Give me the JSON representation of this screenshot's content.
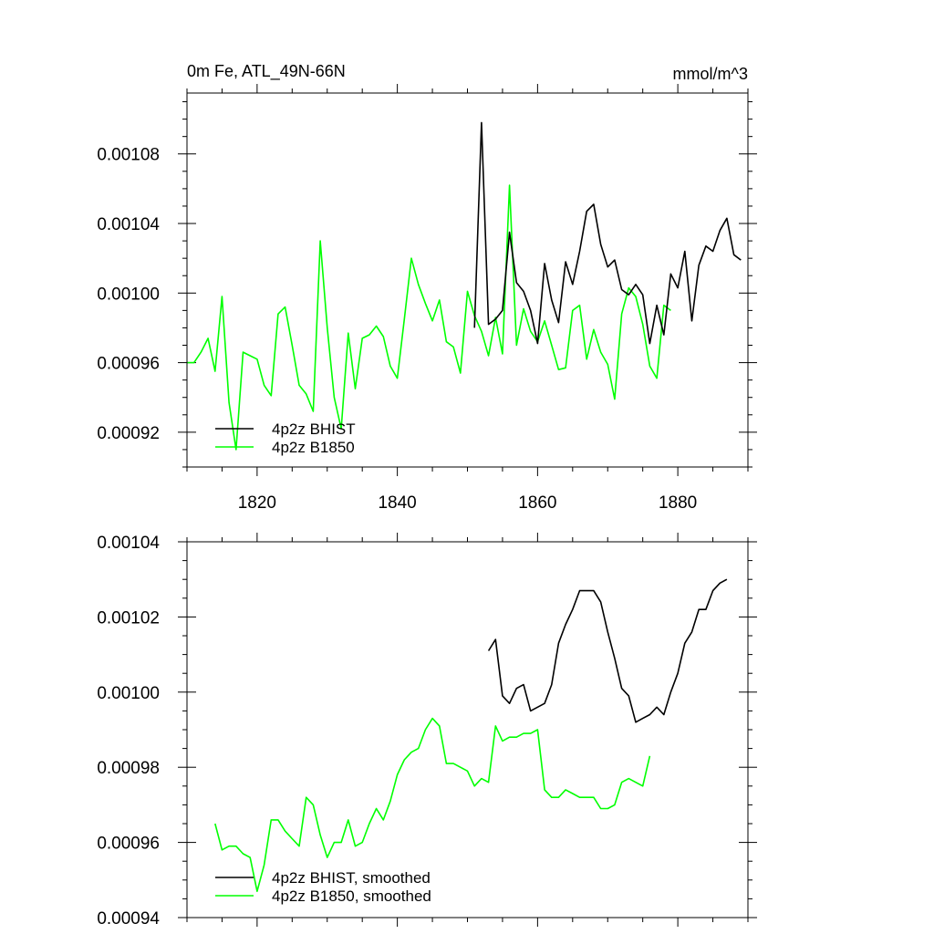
{
  "colors": {
    "bhist": "#000000",
    "b1850": "#00ff00"
  },
  "chart_data": [
    {
      "type": "line",
      "title": "0m Fe, ATL_49N-66N",
      "units": "mmol/m^3",
      "xlim": [
        1810,
        1890
      ],
      "ylim": [
        0.0009,
        0.001115
      ],
      "xticks": [
        1820,
        1840,
        1860,
        1880
      ],
      "xtick_labels": [
        "1820",
        "1840",
        "1860",
        "1880"
      ],
      "yticks": [
        0.00092,
        0.00096,
        0.001,
        0.00104,
        0.00108
      ],
      "ytick_labels": [
        "0.00092",
        "0.00096",
        "0.00100",
        "0.00104",
        "0.00108"
      ],
      "legend_position": "bottom-left",
      "series": [
        {
          "name": "4p2z BHIST",
          "color_key": "bhist",
          "x": [
            1851,
            1852,
            1853,
            1854,
            1855,
            1856,
            1857,
            1858,
            1859,
            1860,
            1861,
            1862,
            1863,
            1864,
            1865,
            1866,
            1867,
            1868,
            1869,
            1870,
            1871,
            1872,
            1873,
            1874,
            1875,
            1876,
            1877,
            1878,
            1879,
            1880,
            1881,
            1882,
            1883,
            1884,
            1885,
            1886,
            1887,
            1888,
            1889
          ],
          "y": [
            0.00098,
            0.001098,
            0.000982,
            0.000985,
            0.00099,
            0.001035,
            0.001006,
            0.001001,
            0.00099,
            0.000971,
            0.001017,
            0.000996,
            0.000983,
            0.001018,
            0.001005,
            0.001024,
            0.001047,
            0.001051,
            0.001028,
            0.001015,
            0.001019,
            0.001002,
            0.000999,
            0.001005,
            0.000999,
            0.000971,
            0.000993,
            0.000976,
            0.001011,
            0.001003,
            0.001024,
            0.000984,
            0.001016,
            0.001027,
            0.001024,
            0.001036,
            0.001043,
            0.001022,
            0.001019
          ]
        },
        {
          "name": "4p2z B1850",
          "color_key": "b1850",
          "x": [
            1810,
            1811,
            1812,
            1813,
            1814,
            1815,
            1816,
            1817,
            1818,
            1819,
            1820,
            1821,
            1822,
            1823,
            1824,
            1825,
            1826,
            1827,
            1828,
            1829,
            1830,
            1831,
            1832,
            1833,
            1834,
            1835,
            1836,
            1837,
            1838,
            1839,
            1840,
            1841,
            1842,
            1843,
            1844,
            1845,
            1846,
            1847,
            1848,
            1849,
            1850,
            1851,
            1852,
            1853,
            1854,
            1855,
            1856,
            1857,
            1858,
            1859,
            1860,
            1861,
            1862,
            1863,
            1864,
            1865,
            1866,
            1867,
            1868,
            1869,
            1870,
            1871,
            1872,
            1873,
            1874,
            1875,
            1876,
            1877,
            1878,
            1879
          ],
          "y": [
            0.00096,
            0.00096,
            0.000966,
            0.000974,
            0.000955,
            0.000998,
            0.000937,
            0.00091,
            0.000966,
            0.000964,
            0.000962,
            0.000947,
            0.000941,
            0.000988,
            0.000992,
            0.00097,
            0.000947,
            0.000942,
            0.000932,
            0.00103,
            0.00098,
            0.00094,
            0.000922,
            0.000977,
            0.000945,
            0.000974,
            0.000976,
            0.000981,
            0.000975,
            0.000958,
            0.000951,
            0.000985,
            0.00102,
            0.001005,
            0.000994,
            0.000984,
            0.000996,
            0.000972,
            0.000969,
            0.000954,
            0.001001,
            0.000987,
            0.000978,
            0.000964,
            0.000986,
            0.000965,
            0.001062,
            0.00097,
            0.000991,
            0.000978,
            0.000972,
            0.000984,
            0.00097,
            0.000956,
            0.000957,
            0.00099,
            0.000993,
            0.000962,
            0.000979,
            0.000966,
            0.000959,
            0.000939,
            0.000988,
            0.001003,
            0.000998,
            0.000982,
            0.000958,
            0.000951,
            0.000993,
            0.00099
          ]
        }
      ]
    },
    {
      "type": "line",
      "title": "",
      "xlim": [
        1810,
        1890
      ],
      "ylim": [
        0.00094,
        0.00104
      ],
      "xticks": [
        1820,
        1840,
        1860,
        1880
      ],
      "yticks": [
        0.00094,
        0.00096,
        0.00098,
        0.001,
        0.00102,
        0.00104
      ],
      "ytick_labels": [
        "0.00094",
        "0.00096",
        "0.00098",
        "0.00100",
        "0.00102",
        "0.00104"
      ],
      "legend_position": "bottom-left",
      "series": [
        {
          "name": "4p2z BHIST, smoothed",
          "color_key": "bhist",
          "x": [
            1853,
            1854,
            1855,
            1856,
            1857,
            1858,
            1859,
            1860,
            1861,
            1862,
            1863,
            1864,
            1865,
            1866,
            1867,
            1868,
            1869,
            1870,
            1871,
            1872,
            1873,
            1874,
            1875,
            1876,
            1877,
            1878,
            1879,
            1880,
            1881,
            1882,
            1883,
            1884,
            1885,
            1886,
            1887
          ],
          "y": [
            0.001011,
            0.001014,
            0.000999,
            0.000997,
            0.001001,
            0.001002,
            0.000995,
            0.000996,
            0.000997,
            0.001002,
            0.001013,
            0.001018,
            0.001022,
            0.001027,
            0.001027,
            0.001027,
            0.001024,
            0.001016,
            0.001009,
            0.001001,
            0.000999,
            0.000992,
            0.000993,
            0.000994,
            0.000996,
            0.000994,
            0.001,
            0.001005,
            0.001013,
            0.001016,
            0.001022,
            0.001022,
            0.001027,
            0.001029,
            0.00103
          ]
        },
        {
          "name": "4p2z B1850, smoothed",
          "color_key": "b1850",
          "x": [
            1814,
            1815,
            1816,
            1817,
            1818,
            1819,
            1820,
            1821,
            1822,
            1823,
            1824,
            1825,
            1826,
            1827,
            1828,
            1829,
            1830,
            1831,
            1832,
            1833,
            1834,
            1835,
            1836,
            1837,
            1838,
            1839,
            1840,
            1841,
            1842,
            1843,
            1844,
            1845,
            1846,
            1847,
            1848,
            1849,
            1850,
            1851,
            1852,
            1853,
            1854,
            1855,
            1856,
            1857,
            1858,
            1859,
            1860,
            1861,
            1862,
            1863,
            1864,
            1865,
            1866,
            1867,
            1868,
            1869,
            1870,
            1871,
            1872,
            1873,
            1874,
            1875,
            1876
          ],
          "y": [
            0.000965,
            0.000958,
            0.000959,
            0.000959,
            0.000957,
            0.000956,
            0.000947,
            0.000954,
            0.000966,
            0.000966,
            0.000963,
            0.000961,
            0.000959,
            0.000972,
            0.00097,
            0.000962,
            0.000956,
            0.00096,
            0.00096,
            0.000966,
            0.000959,
            0.00096,
            0.000965,
            0.000969,
            0.000966,
            0.000971,
            0.000978,
            0.000982,
            0.000984,
            0.000985,
            0.00099,
            0.000993,
            0.000991,
            0.000981,
            0.000981,
            0.00098,
            0.000979,
            0.000975,
            0.000977,
            0.000976,
            0.000991,
            0.000987,
            0.000988,
            0.000988,
            0.000989,
            0.000989,
            0.00099,
            0.000974,
            0.000972,
            0.000972,
            0.000974,
            0.000973,
            0.000972,
            0.000972,
            0.000972,
            0.000969,
            0.000969,
            0.00097,
            0.000976,
            0.000977,
            0.000976,
            0.000975,
            0.000983
          ]
        }
      ]
    }
  ]
}
